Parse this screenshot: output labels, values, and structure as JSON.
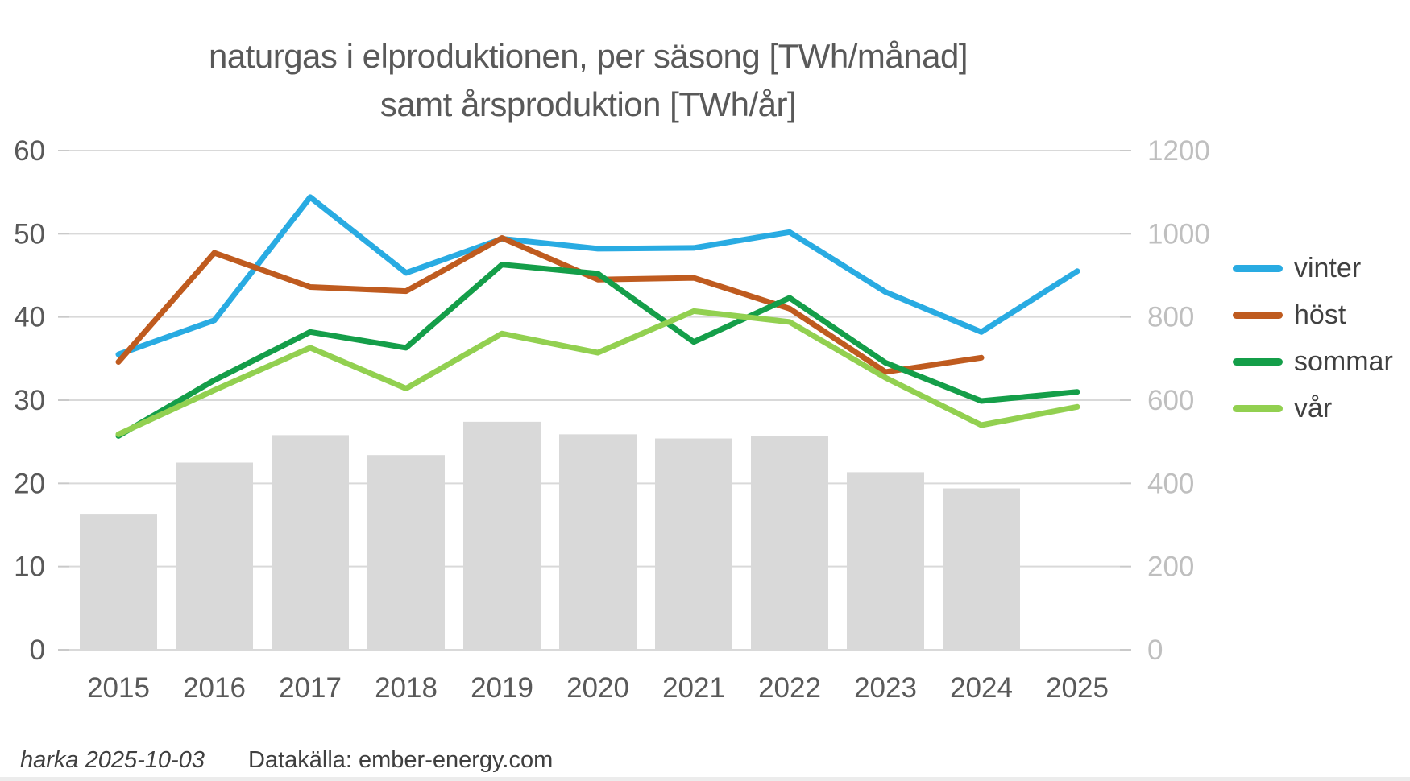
{
  "title": {
    "line1": "naturgas i elproduktionen, per säsong [TWh/månad]",
    "line2": "samt årsproduktion [TWh/år]"
  },
  "footer": {
    "credit": "harka 2025-10-03",
    "source": "Datakälla: ember-energy.com"
  },
  "colors": {
    "vinter": "#29abe2",
    "host": "#bf5b1f",
    "sommar": "#149e49",
    "var": "#92d050",
    "bars": "#d9d9d9",
    "gridline": "#d9d9d9",
    "tick": "#c9c9c9",
    "axis_left_text": "#595959",
    "axis_right_text": "#bfbfbf",
    "x_text": "#595959",
    "title_text": "#595959",
    "legend_text": "#404040"
  },
  "chart_data": {
    "type": "line+bar",
    "title": "naturgas i elproduktionen, per säsong [TWh/månad] samt årsproduktion [TWh/år]",
    "x": [
      2015,
      2016,
      2017,
      2018,
      2019,
      2020,
      2021,
      2022,
      2023,
      2024,
      2025
    ],
    "left_axis": {
      "label": "TWh/månad",
      "min": 0,
      "max": 60,
      "step": 10
    },
    "right_axis": {
      "label": "TWh/år",
      "min": 0,
      "max": 1200,
      "step": 200
    },
    "grid": true,
    "legend_position": "right",
    "series": [
      {
        "name": "vinter",
        "color": "#29abe2",
        "axis": "left",
        "values": [
          35.5,
          39.6,
          54.4,
          45.3,
          49.4,
          48.2,
          48.3,
          50.2,
          43.0,
          38.2,
          45.5
        ]
      },
      {
        "name": "höst",
        "color": "#bf5b1f",
        "axis": "left",
        "values": [
          34.6,
          47.7,
          43.6,
          43.1,
          49.5,
          44.5,
          44.7,
          41.0,
          33.4,
          35.1,
          null
        ]
      },
      {
        "name": "sommar",
        "color": "#149e49",
        "axis": "left",
        "values": [
          25.7,
          32.4,
          38.2,
          36.3,
          46.3,
          45.2,
          37.0,
          42.3,
          34.5,
          29.9,
          31.0
        ]
      },
      {
        "name": "vår",
        "color": "#92d050",
        "axis": "left",
        "values": [
          25.9,
          31.2,
          36.3,
          31.4,
          38.0,
          35.7,
          40.7,
          39.4,
          32.7,
          27.0,
          29.2
        ]
      }
    ],
    "bars": {
      "name": "årsproduktion",
      "color": "#d9d9d9",
      "axis": "right",
      "values": [
        325,
        450,
        516,
        468,
        548,
        518,
        508,
        514,
        427,
        388,
        null
      ]
    }
  }
}
